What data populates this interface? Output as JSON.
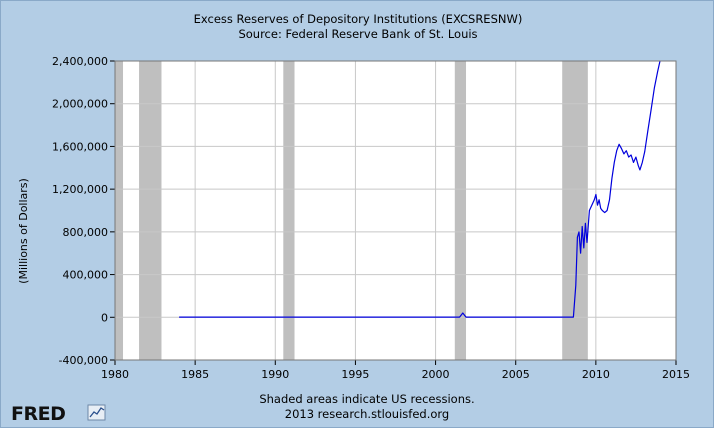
{
  "chart_data": {
    "type": "line",
    "title": "Excess Reserves of Depository Institutions (EXCSRESNW)",
    "subtitle": "Source: Federal Reserve Bank of St. Louis",
    "ylabel": "(Millions of Dollars)",
    "xlim": [
      1980,
      2015
    ],
    "ylim": [
      -400000,
      2400000
    ],
    "x_ticks": [
      1980,
      1985,
      1990,
      1995,
      2000,
      2005,
      2010,
      2015
    ],
    "x_tick_labels": [
      "1980",
      "1985",
      "1990",
      "1995",
      "2000",
      "2005",
      "2010",
      "2015"
    ],
    "y_ticks": [
      -400000,
      0,
      400000,
      800000,
      1200000,
      1600000,
      2000000,
      2400000
    ],
    "y_tick_labels": [
      "-400,000",
      "0",
      "400,000",
      "800,000",
      "1,200,000",
      "1,600,000",
      "2,000,000",
      "2,400,000"
    ],
    "grid": true,
    "recessions": [
      [
        1980.0,
        1980.5
      ],
      [
        1981.5,
        1982.9
      ],
      [
        1990.5,
        1991.2
      ],
      [
        2001.2,
        2001.9
      ],
      [
        2007.9,
        2009.5
      ]
    ],
    "series": [
      {
        "color": "#0000dd",
        "x": [
          1984.0,
          1990.0,
          1995.0,
          2001.5,
          2001.7,
          2001.9,
          2005.0,
          2008.6,
          2008.75,
          2008.85,
          2008.95,
          2009.05,
          2009.15,
          2009.25,
          2009.35,
          2009.45,
          2009.6,
          2009.75,
          2009.9,
          2010.0,
          2010.1,
          2010.2,
          2010.3,
          2010.4,
          2010.55,
          2010.7,
          2010.85,
          2011.0,
          2011.15,
          2011.3,
          2011.45,
          2011.6,
          2011.75,
          2011.9,
          2012.05,
          2012.2,
          2012.35,
          2012.5,
          2012.65,
          2012.75,
          2012.9,
          2013.05,
          2013.25,
          2013.45,
          2013.65,
          2013.85,
          2014.0
        ],
        "values": [
          1500,
          2000,
          1500,
          2000,
          40000,
          2000,
          1800,
          2000,
          300000,
          750000,
          800000,
          600000,
          850000,
          650000,
          880000,
          700000,
          1000000,
          1050000,
          1100000,
          1150000,
          1050000,
          1100000,
          1020000,
          1000000,
          980000,
          1000000,
          1100000,
          1300000,
          1450000,
          1560000,
          1620000,
          1580000,
          1530000,
          1560000,
          1500000,
          1520000,
          1450000,
          1500000,
          1420000,
          1380000,
          1450000,
          1550000,
          1750000,
          1950000,
          2150000,
          2300000,
          2400000
        ]
      }
    ]
  },
  "footer": {
    "note": "Shaded areas indicate US recessions.",
    "credit": "2013 research.stlouisfed.org",
    "logo_text": "FRED"
  },
  "colors": {
    "background": "#b3cde5",
    "plot_bg": "#ffffff",
    "recession": "#bfbfbf",
    "grid": "#c8c8c8",
    "line": "#0000dd"
  }
}
